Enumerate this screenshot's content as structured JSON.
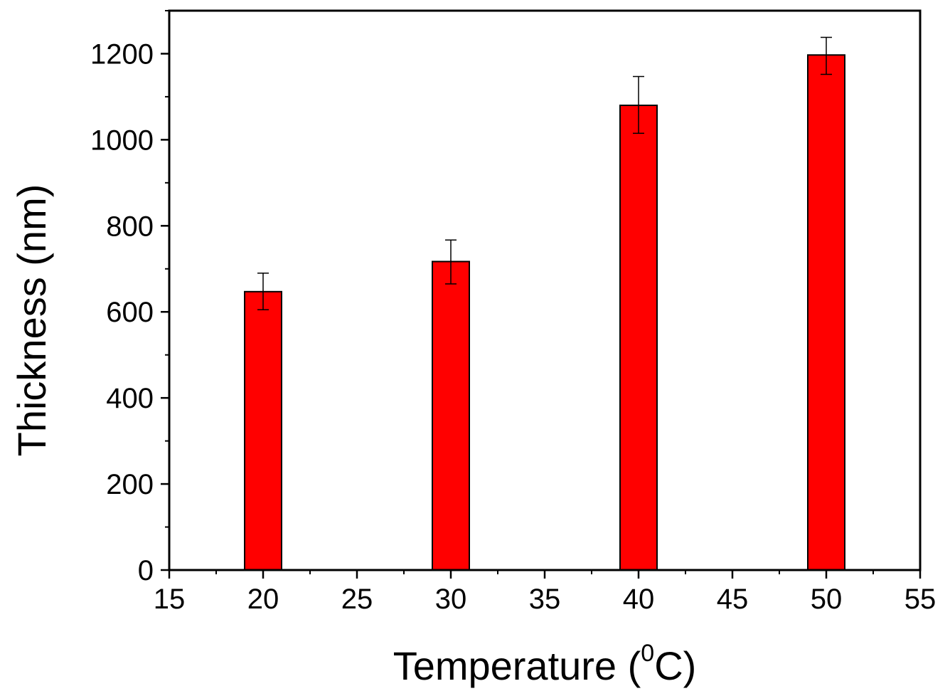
{
  "chart_data": {
    "type": "bar",
    "x": [
      20,
      30,
      40,
      50
    ],
    "values": [
      647,
      717,
      1080,
      1197
    ],
    "errors": [
      [
        605,
        690
      ],
      [
        665,
        767
      ],
      [
        1015,
        1147
      ],
      [
        1152,
        1238
      ]
    ],
    "xlim": [
      15,
      55
    ],
    "ylim": [
      0,
      1300
    ],
    "xticks": [
      "15",
      "20",
      "25",
      "30",
      "35",
      "40",
      "45",
      "50",
      "55"
    ],
    "yticks": [
      "0",
      "200",
      "400",
      "600",
      "800",
      "1000",
      "1200"
    ],
    "xlabel": "Temperature (",
    "xlabel_sup": "0",
    "xlabel_unit": "C)",
    "ylabel": "Thickness (nm)",
    "bar_color": "#ff0000",
    "grid": false,
    "legend": "none"
  }
}
